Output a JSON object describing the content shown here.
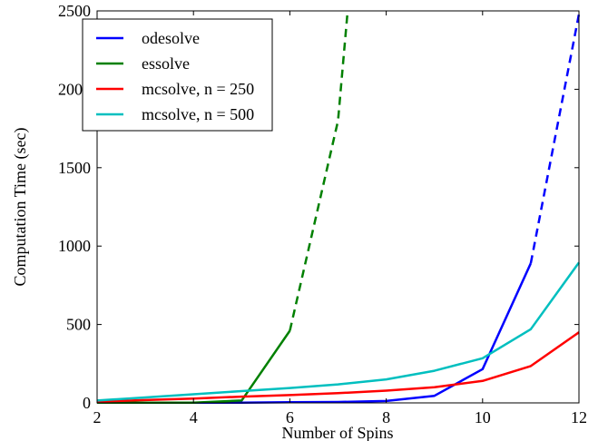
{
  "chart_data": {
    "type": "line",
    "xlabel": "Number of Spins",
    "ylabel": "Computation Time (sec)",
    "xlim": [
      2,
      12
    ],
    "ylim": [
      0,
      2500
    ],
    "xticks": [
      2,
      4,
      6,
      8,
      10,
      12
    ],
    "yticks": [
      0,
      500,
      1000,
      1500,
      2000,
      2500
    ],
    "grid": false,
    "legend_position": "top-left",
    "series": [
      {
        "name": "odesolve",
        "color": "#0000ff",
        "solid": {
          "x": [
            2,
            3,
            4,
            5,
            6,
            7,
            8,
            9,
            10,
            11
          ],
          "y": [
            1,
            1,
            1,
            2,
            4,
            6,
            12,
            45,
            215,
            890
          ]
        },
        "dashed": {
          "x": [
            11,
            12
          ],
          "y": [
            890,
            2480
          ]
        }
      },
      {
        "name": "essolve",
        "color": "#008000",
        "solid": {
          "x": [
            2,
            3,
            4,
            5,
            6
          ],
          "y": [
            1,
            1,
            2,
            15,
            460
          ]
        },
        "dashed": {
          "x": [
            6,
            7,
            7.2
          ],
          "y": [
            460,
            1800,
            2500
          ]
        }
      },
      {
        "name": "mcsolve, n = 250",
        "color": "#ff0000",
        "solid": {
          "x": [
            2,
            3,
            4,
            5,
            6,
            7,
            8,
            9,
            10,
            11,
            12
          ],
          "y": [
            8,
            18,
            28,
            40,
            50,
            62,
            78,
            100,
            140,
            235,
            450
          ]
        },
        "dashed": null
      },
      {
        "name": "mcsolve, n = 500",
        "color": "#00bfbf",
        "solid": {
          "x": [
            2,
            3,
            4,
            5,
            6,
            7,
            8,
            9,
            10,
            11,
            12
          ],
          "y": [
            15,
            35,
            55,
            75,
            95,
            118,
            150,
            205,
            285,
            470,
            895
          ]
        },
        "dashed": null
      }
    ]
  }
}
